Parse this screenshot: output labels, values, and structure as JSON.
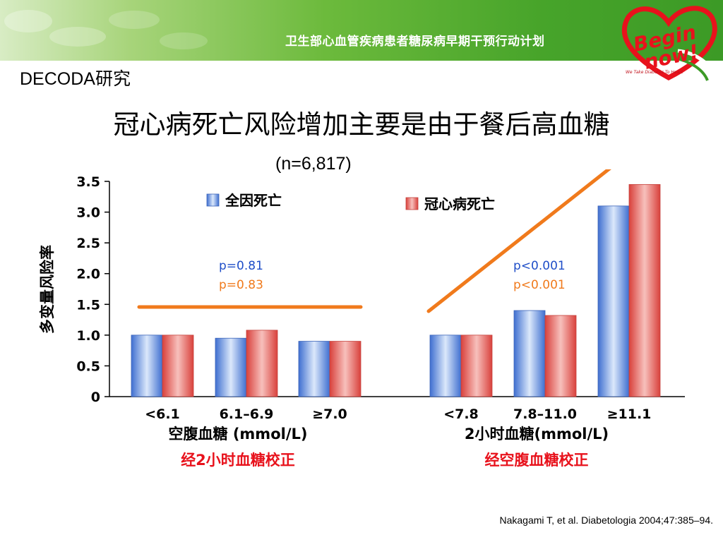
{
  "header": {
    "banner_title": "卫生部心血管疾病患者糖尿病早期干预行动计划",
    "logo_line1": "Begin",
    "logo_line2": "now!",
    "logo_tagline": "We Take Diabetes To Heart"
  },
  "study_label": "DECODA研究",
  "title": "冠心病死亡风险增加主要是由于餐后高血糖",
  "subtitle": "(n=6,817)",
  "citation": "Nakagami T, et al. Diabetologia 2004;47:385–94.",
  "colors": {
    "all_cause": "#4a7fd6",
    "chd": "#e45a56",
    "trend": "#f07a1c",
    "p_blue": "#1f4ec8",
    "p_orange": "#f07a1c",
    "note_red": "#e8121c"
  },
  "chart_data": {
    "type": "bar",
    "ylabel": "多变量风险率",
    "ylim": [
      0,
      3.5
    ],
    "yticks": [
      "0",
      "0.5",
      "1.0",
      "1.5",
      "2.0",
      "2.5",
      "3.0",
      "3.5"
    ],
    "legend": [
      {
        "label": "全因死亡",
        "color": "#4a7fd6"
      },
      {
        "label": "冠心病死亡",
        "color": "#e45a56"
      }
    ],
    "groups": [
      {
        "xlabel": "空腹血糖 (mmol/L)",
        "adjustment": "经2小时血糖校正",
        "categories": [
          "<6.1",
          "6.1–6.9",
          "≥7.0"
        ],
        "series": [
          {
            "name": "全因死亡",
            "values": [
              1.0,
              0.95,
              0.9
            ]
          },
          {
            "name": "冠心病死亡",
            "values": [
              1.0,
              1.08,
              0.9
            ]
          }
        ],
        "p_values": [
          "p=0.81",
          "p=0.83"
        ]
      },
      {
        "xlabel": "2小时血糖(mmol/L)",
        "adjustment": "经空腹血糖校正",
        "categories": [
          "<7.8",
          "7.8–11.0",
          "≥11.1"
        ],
        "series": [
          {
            "name": "全因死亡",
            "values": [
              1.0,
              1.4,
              3.1
            ]
          },
          {
            "name": "冠心病死亡",
            "values": [
              1.0,
              1.32,
              3.45
            ]
          }
        ],
        "p_values": [
          "p<0.001",
          "p<0.001"
        ]
      }
    ]
  }
}
